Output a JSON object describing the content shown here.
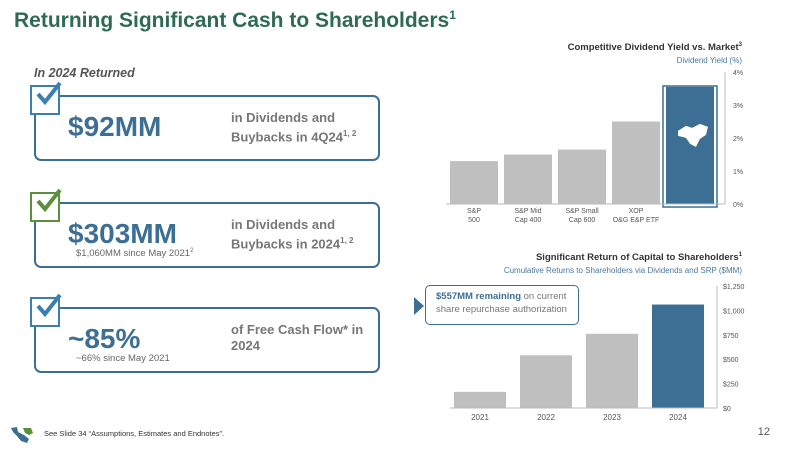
{
  "page": {
    "title": "Returning Significant Cash to Shareholders",
    "title_sup": "1",
    "subhead": "In 2024 Returned",
    "footnote": "See Slide 34 “Assumptions, Estimates and Endnotes”.",
    "page_number": "12"
  },
  "boxes": [
    {
      "big": "$92MM",
      "desc": "in Dividends and Buybacks in 4Q24",
      "desc_sup": "1, 2",
      "note": "",
      "note_sup": ""
    },
    {
      "big": "$303MM",
      "desc": "in Dividends and Buybacks in 2024",
      "desc_sup": "1, 2",
      "note": "$1,060MM since May 2021",
      "note_sup": "2"
    },
    {
      "big": "~85%",
      "desc": "of Free Cash Flow* in 2024",
      "desc_sup": "",
      "note": "~66% since May 2021",
      "note_sup": ""
    }
  ],
  "colors": {
    "title_green": "#2e6b52",
    "highlight_blue": "#3d6f94",
    "bar_grey": "#bfbfbf",
    "check_blue": "#3a7fb0",
    "check_green": "#5b8f3e"
  },
  "icons": {
    "check": "checkbox-checkmark-icon",
    "logo": "california-resources-logo-icon",
    "chevron": "chevron-right-icon"
  },
  "callout": {
    "bold": "$557MM remaining",
    "rest": " on current share repurchase authorization"
  },
  "chart_data": [
    {
      "type": "bar",
      "title": "Competitive Dividend Yield vs. Market",
      "title_sup": "3",
      "ylabel": "Dividend Yield (%)",
      "categories": [
        [
          "S&P",
          "500"
        ],
        [
          "S&P Mid",
          "Cap 400"
        ],
        [
          "S&P Small",
          "Cap 600"
        ],
        [
          "XOP",
          "O&G E&P ETF"
        ],
        [
          ""
        ]
      ],
      "values": [
        1.3,
        1.5,
        1.65,
        2.5,
        3.55
      ],
      "highlight_index": 4,
      "ylim": [
        0,
        4
      ],
      "yticks": [
        "0%",
        "1%",
        "2%",
        "3%",
        "4%"
      ],
      "grid": false
    },
    {
      "type": "bar",
      "title": "Significant Return of Capital to Shareholders",
      "title_sup": "1",
      "ylabel": "Cumulative Returns to Shareholders via Dividends and SRP ($MM)",
      "categories": [
        "2021",
        "2022",
        "2023",
        "2024"
      ],
      "values": [
        165,
        540,
        760,
        1060
      ],
      "highlight_index": 3,
      "ylim": [
        0,
        1250
      ],
      "yticks": [
        "$0",
        "$250",
        "$500",
        "$750",
        "$1,000",
        "$1,250"
      ],
      "grid": false
    }
  ]
}
